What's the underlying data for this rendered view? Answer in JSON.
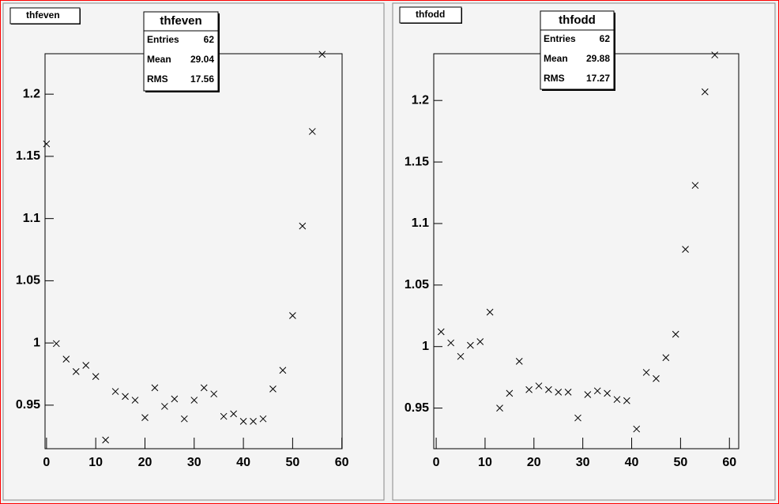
{
  "chart_data": [
    {
      "type": "scatter",
      "name": "thfeven",
      "title": "thfeven",
      "stats": [
        {
          "name": "Entries",
          "value": 62
        },
        {
          "name": "Mean",
          "value": 29.04
        },
        {
          "name": "RMS",
          "value": 17.56
        }
      ],
      "x": [
        0,
        2,
        4,
        6,
        8,
        10,
        12,
        14,
        16,
        18,
        20,
        22,
        24,
        26,
        28,
        30,
        32,
        34,
        36,
        38,
        40,
        42,
        44,
        46,
        48,
        50,
        52,
        54,
        56
      ],
      "values": [
        1.16,
        0.9995,
        0.987,
        0.977,
        0.982,
        0.973,
        0.922,
        0.961,
        0.957,
        0.954,
        0.94,
        0.964,
        0.949,
        0.955,
        0.939,
        0.954,
        0.964,
        0.959,
        0.941,
        0.943,
        0.937,
        0.937,
        0.939,
        0.963,
        0.978,
        1.022,
        1.094,
        1.17,
        1.232
      ],
      "color": "#000000",
      "xlim": [
        -0.3,
        60.05
      ],
      "xticks": [
        0,
        10,
        20,
        30,
        40,
        50,
        60
      ],
      "ylim": [
        0.915,
        1.2325
      ],
      "yticks": [
        0.95,
        1,
        1.05,
        1.1,
        1.15,
        1.2
      ]
    },
    {
      "type": "scatter",
      "name": "thfodd",
      "title": "thfodd",
      "stats": [
        {
          "name": "Entries",
          "value": 62
        },
        {
          "name": "Mean",
          "value": 29.88
        },
        {
          "name": "RMS",
          "value": 17.27
        }
      ],
      "x": [
        1,
        3,
        5,
        7,
        9,
        11,
        13,
        15,
        17,
        19,
        21,
        23,
        25,
        27,
        29,
        31,
        33,
        35,
        37,
        39,
        41,
        43,
        45,
        47,
        49,
        51,
        53,
        55,
        57
      ],
      "values": [
        1.012,
        1.003,
        0.992,
        1.001,
        1.004,
        1.028,
        0.95,
        0.962,
        0.988,
        0.965,
        0.968,
        0.965,
        0.963,
        0.963,
        0.942,
        0.961,
        0.964,
        0.962,
        0.957,
        0.956,
        0.933,
        0.979,
        0.974,
        0.991,
        1.01,
        1.079,
        1.131,
        1.207,
        1.237
      ],
      "color": "#000000",
      "xlim": [
        -0.5,
        61.9
      ],
      "xticks": [
        0,
        10,
        20,
        30,
        40,
        50,
        60
      ],
      "ylim": [
        0.917,
        1.238
      ],
      "yticks": [
        0.95,
        1,
        1.05,
        1.1,
        1.15,
        1.2
      ]
    }
  ]
}
